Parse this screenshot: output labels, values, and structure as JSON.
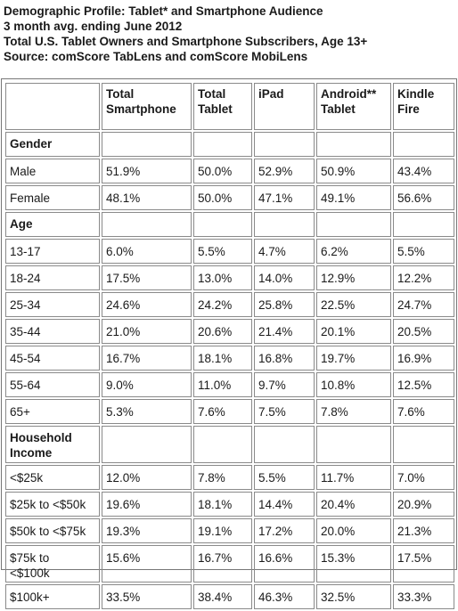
{
  "heading": {
    "line1": "Demographic Profile: Tablet* and Smartphone Audience",
    "line2": "3 month avg. ending June 2012",
    "line3": "Total U.S. Tablet Owners and Smartphone Subscribers, Age 13+",
    "line4": "Source: comScore TabLens and comScore MobiLens"
  },
  "table": {
    "columns": [
      {
        "line1": "",
        "line2": ""
      },
      {
        "line1": "Total",
        "line2": "Smartphone"
      },
      {
        "line1": "Total",
        "line2": "Tablet"
      },
      {
        "line1": "iPad",
        "line2": ""
      },
      {
        "line1": "Android**",
        "line2": "Tablet"
      },
      {
        "line1": "Kindle",
        "line2": "Fire"
      }
    ],
    "rows": [
      {
        "kind": "section",
        "label1": "Gender",
        "label2": "",
        "values": [
          "",
          "",
          "",
          "",
          ""
        ]
      },
      {
        "kind": "row",
        "label1": "Male",
        "label2": "",
        "values": [
          "51.9%",
          "50.0%",
          "52.9%",
          "50.9%",
          "43.4%"
        ]
      },
      {
        "kind": "row",
        "label1": "Female",
        "label2": "",
        "values": [
          "48.1%",
          "50.0%",
          "47.1%",
          "49.1%",
          "56.6%"
        ]
      },
      {
        "kind": "section",
        "label1": "Age",
        "label2": "",
        "values": [
          "",
          "",
          "",
          "",
          ""
        ]
      },
      {
        "kind": "row",
        "label1": "13-17",
        "label2": "",
        "values": [
          "6.0%",
          "5.5%",
          "4.7%",
          "6.2%",
          "5.5%"
        ]
      },
      {
        "kind": "row",
        "label1": "18-24",
        "label2": "",
        "values": [
          "17.5%",
          "13.0%",
          "14.0%",
          "12.9%",
          "12.2%"
        ]
      },
      {
        "kind": "row",
        "label1": "25-34",
        "label2": "",
        "values": [
          "24.6%",
          "24.2%",
          "25.8%",
          "22.5%",
          "24.7%"
        ]
      },
      {
        "kind": "row",
        "label1": "35-44",
        "label2": "",
        "values": [
          "21.0%",
          "20.6%",
          "21.4%",
          "20.1%",
          "20.5%"
        ]
      },
      {
        "kind": "row",
        "label1": "45-54",
        "label2": "",
        "values": [
          "16.7%",
          "18.1%",
          "16.8%",
          "19.7%",
          "16.9%"
        ]
      },
      {
        "kind": "row",
        "label1": "55-64",
        "label2": "",
        "values": [
          "9.0%",
          "11.0%",
          "9.7%",
          "10.8%",
          "12.5%"
        ]
      },
      {
        "kind": "row",
        "label1": "65+",
        "label2": "",
        "values": [
          "5.3%",
          "7.6%",
          "7.5%",
          "7.8%",
          "7.6%"
        ]
      },
      {
        "kind": "section2",
        "label1": "Household",
        "label2": "Income",
        "values": [
          "",
          "",
          "",
          "",
          ""
        ]
      },
      {
        "kind": "row",
        "label1": "<$25k",
        "label2": "",
        "values": [
          "12.0%",
          "7.8%",
          "5.5%",
          "11.7%",
          "7.0%"
        ]
      },
      {
        "kind": "row",
        "label1": "$25k to <$50k",
        "label2": "",
        "values": [
          "19.6%",
          "18.1%",
          "14.4%",
          "20.4%",
          "20.9%"
        ]
      },
      {
        "kind": "row",
        "label1": "$50k to <$75k",
        "label2": "",
        "values": [
          "19.3%",
          "19.1%",
          "17.2%",
          "20.0%",
          "21.3%"
        ]
      },
      {
        "kind": "row2",
        "label1": "$75k to",
        "label2": "<$100k",
        "values": [
          "15.6%",
          "16.7%",
          "16.6%",
          "15.3%",
          "17.5%"
        ]
      },
      {
        "kind": "row",
        "label1": "$100k+",
        "label2": "",
        "values": [
          "33.5%",
          "38.4%",
          "46.3%",
          "32.5%",
          "33.3%"
        ]
      }
    ]
  }
}
